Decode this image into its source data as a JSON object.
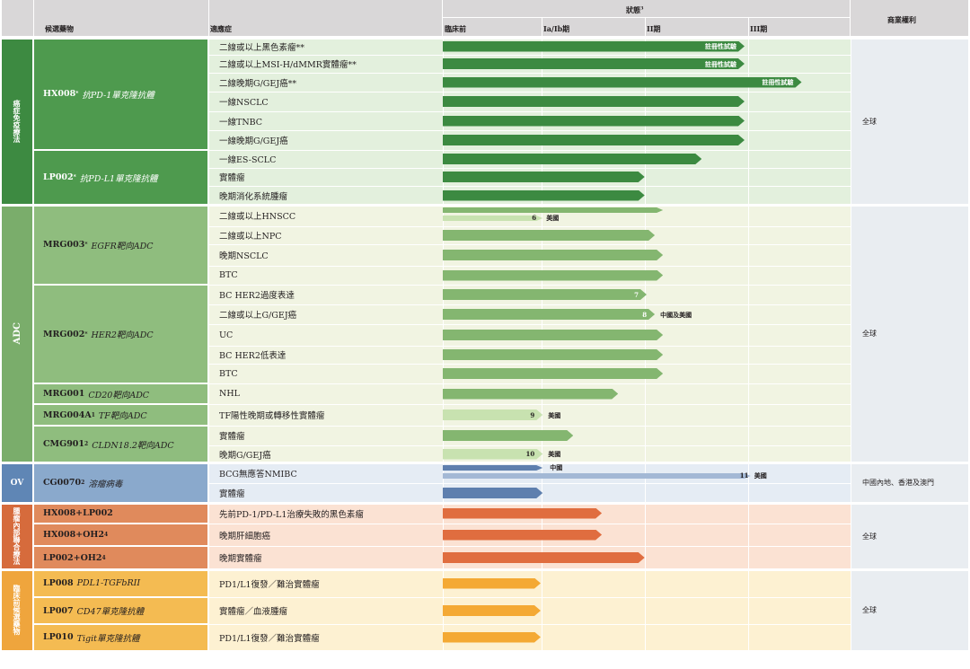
{
  "header": {
    "drug_col": "候選藥物",
    "indication_col": "適應症",
    "status_title": "狀態",
    "status_sup": "3",
    "rights_col": "商業權利",
    "stages": [
      "臨床前",
      "Ia/Ib期",
      "II期",
      "III期"
    ]
  },
  "colors": {
    "header_bg": "#d9d7d8",
    "io": {
      "cat": "#3d8a41",
      "drug": "#4e9a4e",
      "row": "#e3f0dd",
      "bar": "#3c8a41",
      "bar_light": "#b9dba9"
    },
    "adc": {
      "cat": "#7aad6b",
      "drug": "#8fbd7e",
      "row": "#f1f4e2",
      "bar": "#84b670",
      "bar_light": "#c8e2b0"
    },
    "ov": {
      "cat": "#5f86b5",
      "drug": "#8aa9cc",
      "row": "#e5ecf4",
      "bar": "#5e7fae",
      "bar_light": "#a3b8d5"
    },
    "combo": {
      "cat": "#d66b3c",
      "drug": "#e08a5c",
      "row": "#fbe2d3",
      "bar": "#e06d3f"
    },
    "pre": {
      "cat": "#efa53d",
      "drug": "#f4bb52",
      "row": "#fdf1d2",
      "bar": "#f4a934"
    },
    "rights_bg": "#e9edf1"
  },
  "categories": [
    {
      "id": "io",
      "label": "癌症免疫療法",
      "vertical": true
    },
    {
      "id": "adc",
      "label": "ADC",
      "vertical": false
    },
    {
      "id": "ov",
      "label": "OV",
      "vertical": false,
      "horizontal": true
    },
    {
      "id": "combo",
      "label": "腫瘤內部聯合療法",
      "vertical": true
    },
    {
      "id": "pre",
      "label": "臨床前候選藥物",
      "vertical": true
    }
  ],
  "drugs": [
    {
      "cat": "io",
      "code": "HX008",
      "sup": "*",
      "desc": "抗PD-1單克隆抗體",
      "rows": [
        0,
        5
      ]
    },
    {
      "cat": "io",
      "code": "LP002",
      "sup": "*",
      "desc": "抗PD-L1單克隆抗體",
      "rows": [
        6,
        8
      ]
    },
    {
      "cat": "adc",
      "code": "MRG003",
      "sup": "*",
      "desc": "EGFR靶向ADC",
      "rows": [
        9,
        12
      ]
    },
    {
      "cat": "adc",
      "code": "MRG002",
      "sup": "*",
      "desc": "HER2靶向ADC",
      "rows": [
        13,
        17
      ]
    },
    {
      "cat": "adc",
      "code": "MRG001",
      "sup": "",
      "desc": "CD20靶向ADC",
      "rows": [
        18,
        18
      ]
    },
    {
      "cat": "adc",
      "code": "MRG004A",
      "sup": "1",
      "desc": "TF靶向ADC",
      "rows": [
        19,
        19
      ]
    },
    {
      "cat": "adc",
      "code": "CMG901",
      "sup": "2",
      "desc": "CLDN18.2靶向ADC",
      "rows": [
        20,
        21
      ]
    },
    {
      "cat": "ov",
      "code": "CG0070",
      "sup": "2",
      "desc": "溶瘤病毒",
      "rows": [
        22,
        23
      ]
    },
    {
      "cat": "combo",
      "code": "HX008+LP002",
      "sup": "",
      "desc": "",
      "rows": [
        24,
        24
      ]
    },
    {
      "cat": "combo",
      "code": "HX008+OH2",
      "sup": "4",
      "desc": "",
      "rows": [
        25,
        25
      ]
    },
    {
      "cat": "combo",
      "code": "LP002+OH2",
      "sup": "4",
      "desc": "",
      "rows": [
        26,
        26
      ]
    },
    {
      "cat": "pre",
      "code": "LP008",
      "sup": "",
      "desc": "PDL1-TGFbRII",
      "rows": [
        27,
        27
      ]
    },
    {
      "cat": "pre",
      "code": "LP007",
      "sup": "",
      "desc": "CD47單克隆抗體",
      "rows": [
        28,
        28
      ]
    },
    {
      "cat": "pre",
      "code": "LP010",
      "sup": "",
      "desc": "Tigit單克隆抗體",
      "rows": [
        29,
        29
      ]
    }
  ],
  "rows": [
    {
      "cat": "io",
      "indication": "二線或以上黑色素瘤**",
      "progress": 0.74,
      "bar_label": "註冊性試驗"
    },
    {
      "cat": "io",
      "indication": "二線或以上MSI-H/dMMR實體瘤**",
      "progress": 0.74,
      "bar_label": "註冊性試驗"
    },
    {
      "cat": "io",
      "indication": "二線晚期G/GEJ癌**",
      "progress": 0.88,
      "bar_label": "註冊性試驗"
    },
    {
      "cat": "io",
      "indication": "一線NSCLC",
      "progress": 0.74
    },
    {
      "cat": "io",
      "indication": "一線TNBC",
      "progress": 0.74
    },
    {
      "cat": "io",
      "indication": "一線晚期G/GEJ癌",
      "progress": 0.74
    },
    {
      "cat": "io",
      "indication": "一線ES-SCLC",
      "progress": 0.635
    },
    {
      "cat": "io",
      "indication": "實體瘤",
      "progress": 0.495
    },
    {
      "cat": "io",
      "indication": "晚期消化系統腫瘤",
      "progress": 0.495
    },
    {
      "cat": "adc",
      "indication": "二線或以上HNSCC",
      "progress": 0.54,
      "sub": {
        "progress": 0.245,
        "label": "6",
        "note": "美國"
      }
    },
    {
      "cat": "adc",
      "indication": "二線或以上NPC",
      "progress": 0.52
    },
    {
      "cat": "adc",
      "indication": "晚期NSCLC",
      "progress": 0.54
    },
    {
      "cat": "adc",
      "indication": "BTC",
      "progress": 0.54
    },
    {
      "cat": "adc",
      "indication": "BC HER2過度表達",
      "progress": 0.5,
      "bar_label": "7"
    },
    {
      "cat": "adc",
      "indication": "二線或以上G/GEJ癌",
      "progress": 0.52,
      "bar_label": "8",
      "note": "中國及美國"
    },
    {
      "cat": "adc",
      "indication": "UC",
      "progress": 0.54
    },
    {
      "cat": "adc",
      "indication": "BC HER2低表達",
      "progress": 0.54
    },
    {
      "cat": "adc",
      "indication": "BTC",
      "progress": 0.54
    },
    {
      "cat": "adc",
      "indication": "NHL",
      "progress": 0.43
    },
    {
      "cat": "adc",
      "indication": "TF陽性晚期或轉移性實體瘤",
      "progress": 0.245,
      "bar_label": "9",
      "note": "美國",
      "light": true
    },
    {
      "cat": "adc",
      "indication": "實體瘤",
      "progress": 0.32
    },
    {
      "cat": "adc",
      "indication": "晚期G/GEJ癌",
      "progress": 0.245,
      "bar_label": "10",
      "note": "美國",
      "light": true
    },
    {
      "cat": "ov",
      "indication": "BCG無應答NMIBC",
      "progress": 0.245,
      "note_top": "中國",
      "sub": {
        "progress": 0.755,
        "label": "11",
        "note": "美國"
      }
    },
    {
      "cat": "ov",
      "indication": "實體瘤",
      "progress": 0.245
    },
    {
      "cat": "combo",
      "indication": "先前PD-1/PD-L1治療失敗的黑色素瘤",
      "progress": 0.39
    },
    {
      "cat": "combo",
      "indication": "晚期肝細胞癌",
      "progress": 0.39
    },
    {
      "cat": "combo",
      "indication": "晚期實體瘤",
      "progress": 0.495
    },
    {
      "cat": "pre",
      "indication": "PD1/L1復發／難治實體瘤",
      "progress": 0.24
    },
    {
      "cat": "pre",
      "indication": "實體瘤／血液腫瘤",
      "progress": 0.24
    },
    {
      "cat": "pre",
      "indication": "PD1/L1復發／難治實體瘤",
      "progress": 0.24
    }
  ],
  "rights": [
    {
      "text": "全球",
      "rows": [
        0,
        8
      ]
    },
    {
      "text": "全球",
      "rows": [
        9,
        21
      ]
    },
    {
      "text": "中國內地、香港及澳門",
      "rows": [
        22,
        23
      ]
    },
    {
      "text": "全球",
      "rows": [
        24,
        26
      ]
    },
    {
      "text": "全球",
      "rows": [
        27,
        29
      ]
    }
  ]
}
